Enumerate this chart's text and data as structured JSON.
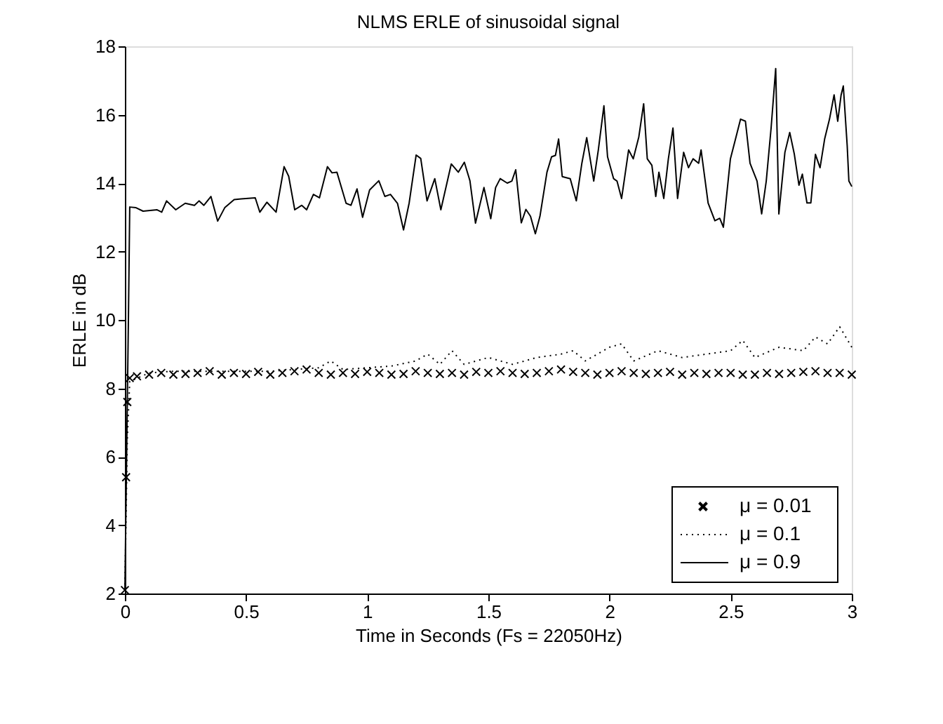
{
  "chart_data": {
    "type": "line",
    "title": "NLMS ERLE of sinusoidal signal",
    "xlabel": "Time in Seconds (Fs = 22050Hz)",
    "ylabel": "ERLE in dB",
    "xlim": [
      0,
      3
    ],
    "ylim": [
      2,
      18
    ],
    "xticks": [
      0,
      0.5,
      1,
      1.5,
      2,
      2.5,
      3
    ],
    "yticks": [
      2,
      4,
      6,
      8,
      10,
      12,
      14,
      16,
      18
    ],
    "grid": false,
    "legend": "bottom right",
    "series": [
      {
        "name": "μ = 0.01",
        "type": "scatter",
        "marker": "cross",
        "color": "#000000",
        "x": [
          0,
          0.005,
          0.01,
          0.02,
          0.05,
          0.1,
          0.15,
          0.2,
          0.25,
          0.3,
          0.35,
          0.4,
          0.45,
          0.5,
          0.55,
          0.6,
          0.65,
          0.7,
          0.75,
          0.8,
          0.85,
          0.9,
          0.95,
          1.0,
          1.05,
          1.1,
          1.15,
          1.2,
          1.25,
          1.3,
          1.35,
          1.4,
          1.45,
          1.5,
          1.55,
          1.6,
          1.65,
          1.7,
          1.75,
          1.8,
          1.85,
          1.9,
          1.95,
          2.0,
          2.05,
          2.1,
          2.15,
          2.2,
          2.25,
          2.3,
          2.35,
          2.4,
          2.45,
          2.5,
          2.55,
          2.6,
          2.65,
          2.7,
          2.75,
          2.8,
          2.85,
          2.9,
          2.95,
          3.0
        ],
        "values": [
          2.1,
          5.4,
          7.6,
          8.3,
          8.35,
          8.4,
          8.45,
          8.4,
          8.42,
          8.45,
          8.5,
          8.4,
          8.45,
          8.42,
          8.48,
          8.4,
          8.45,
          8.5,
          8.55,
          8.45,
          8.4,
          8.45,
          8.42,
          8.48,
          8.45,
          8.4,
          8.42,
          8.5,
          8.45,
          8.42,
          8.45,
          8.4,
          8.48,
          8.45,
          8.5,
          8.45,
          8.42,
          8.45,
          8.5,
          8.55,
          8.48,
          8.45,
          8.4,
          8.45,
          8.5,
          8.45,
          8.42,
          8.45,
          8.48,
          8.4,
          8.45,
          8.42,
          8.45,
          8.45,
          8.4,
          8.4,
          8.45,
          8.42,
          8.45,
          8.48,
          8.5,
          8.45,
          8.45,
          8.4
        ]
      },
      {
        "name": "μ = 0.1",
        "type": "line",
        "line_style": "dotted",
        "color": "#000000",
        "x": [
          0,
          0.01,
          0.02,
          0.1,
          0.2,
          0.3,
          0.4,
          0.5,
          0.6,
          0.7,
          0.8,
          0.85,
          0.9,
          1.0,
          1.1,
          1.2,
          1.25,
          1.3,
          1.35,
          1.4,
          1.5,
          1.6,
          1.7,
          1.8,
          1.85,
          1.9,
          2.0,
          2.05,
          2.1,
          2.2,
          2.3,
          2.4,
          2.5,
          2.55,
          2.6,
          2.7,
          2.8,
          2.85,
          2.9,
          2.95,
          3.0
        ],
        "values": [
          2.1,
          6.5,
          8.2,
          8.45,
          8.5,
          8.5,
          8.5,
          8.5,
          8.5,
          8.55,
          8.6,
          8.8,
          8.55,
          8.6,
          8.65,
          8.8,
          9.0,
          8.7,
          9.1,
          8.7,
          8.9,
          8.7,
          8.9,
          9.0,
          9.1,
          8.8,
          9.2,
          9.3,
          8.8,
          9.1,
          8.9,
          9.0,
          9.1,
          9.4,
          8.9,
          9.2,
          9.1,
          9.5,
          9.3,
          9.8,
          9.2
        ]
      },
      {
        "name": "μ = 0.9",
        "line_style": "solid",
        "color": "#000000",
        "x": [
          0,
          0.015,
          0.02,
          0.046,
          0.075,
          0.133,
          0.152,
          0.172,
          0.21,
          0.249,
          0.287,
          0.306,
          0.326,
          0.355,
          0.383,
          0.412,
          0.451,
          0.48,
          0.538,
          0.557,
          0.586,
          0.624,
          0.657,
          0.676,
          0.701,
          0.73,
          0.75,
          0.778,
          0.803,
          0.836,
          0.855,
          0.875,
          0.913,
          0.933,
          0.958,
          0.981,
          1.01,
          1.048,
          1.073,
          1.096,
          1.125,
          1.15,
          1.173,
          1.202,
          1.221,
          1.247,
          1.279,
          1.304,
          1.347,
          1.376,
          1.401,
          1.424,
          1.447,
          1.482,
          1.51,
          1.53,
          1.549,
          1.578,
          1.597,
          1.613,
          1.636,
          1.655,
          1.674,
          1.694,
          1.713,
          1.742,
          1.761,
          1.777,
          1.79,
          1.805,
          1.838,
          1.863,
          1.886,
          1.906,
          1.935,
          1.954,
          1.977,
          1.992,
          2.017,
          2.031,
          2.05,
          2.079,
          2.098,
          2.121,
          2.141,
          2.156,
          2.175,
          2.191,
          2.204,
          2.224,
          2.243,
          2.262,
          2.281,
          2.306,
          2.326,
          2.345,
          2.368,
          2.378,
          2.407,
          2.435,
          2.455,
          2.47,
          2.499,
          2.518,
          2.541,
          2.561,
          2.58,
          2.609,
          2.628,
          2.647,
          2.667,
          2.686,
          2.699,
          2.724,
          2.744,
          2.763,
          2.782,
          2.796,
          2.815,
          2.831,
          2.85,
          2.869,
          2.888,
          2.908,
          2.927,
          2.942,
          2.956,
          2.965,
          2.981,
          2.988,
          3.0
        ],
        "values": [
          2.1,
          10.3,
          13.3,
          13.28,
          13.18,
          13.22,
          13.15,
          13.48,
          13.22,
          13.41,
          13.35,
          13.48,
          13.35,
          13.61,
          12.89,
          13.28,
          13.52,
          13.54,
          13.57,
          13.15,
          13.44,
          13.15,
          14.48,
          14.2,
          13.22,
          13.35,
          13.22,
          13.67,
          13.57,
          14.48,
          14.3,
          14.32,
          13.41,
          13.35,
          13.83,
          13.0,
          13.8,
          14.07,
          13.61,
          13.67,
          13.41,
          12.63,
          13.41,
          14.82,
          14.72,
          13.48,
          14.13,
          13.22,
          14.56,
          14.32,
          14.61,
          14.07,
          12.83,
          13.87,
          12.96,
          13.87,
          14.13,
          14.0,
          14.06,
          14.39,
          12.84,
          13.23,
          13.03,
          12.52,
          13.03,
          14.32,
          14.77,
          14.81,
          15.29,
          14.19,
          14.13,
          13.48,
          14.58,
          15.33,
          14.06,
          14.97,
          16.26,
          14.77,
          14.13,
          14.06,
          13.55,
          14.97,
          14.71,
          15.35,
          16.32,
          14.71,
          14.52,
          13.61,
          14.32,
          13.55,
          14.71,
          15.61,
          13.55,
          14.9,
          14.45,
          14.71,
          14.58,
          14.97,
          13.42,
          12.9,
          12.97,
          12.71,
          14.71,
          15.23,
          15.87,
          15.81,
          14.58,
          14.06,
          13.1,
          14.06,
          15.61,
          17.35,
          13.1,
          14.9,
          15.48,
          14.84,
          13.94,
          14.26,
          13.42,
          13.42,
          14.84,
          14.45,
          15.29,
          15.87,
          16.58,
          15.81,
          16.58,
          16.84,
          15.1,
          14.06,
          13.9
        ]
      }
    ]
  }
}
